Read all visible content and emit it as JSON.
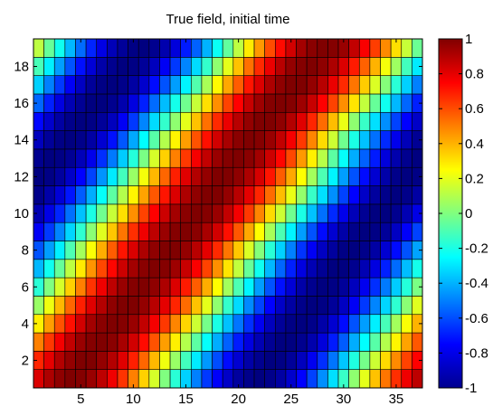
{
  "chart_data": {
    "type": "heatmap",
    "title": "True field, initial time",
    "xlabel": "",
    "ylabel": "",
    "x_count": 37,
    "y_count": 19,
    "x_range": [
      0.5,
      37.5
    ],
    "y_range": [
      0.5,
      19.5
    ],
    "x_ticks": [
      5,
      10,
      15,
      20,
      25,
      30,
      35
    ],
    "y_ticks": [
      2,
      4,
      6,
      8,
      10,
      12,
      14,
      16,
      18
    ],
    "colorbar": {
      "colormap": "jet",
      "range": [
        -1,
        1
      ],
      "ticks": [
        -1,
        -0.8,
        -0.6,
        -0.4,
        -0.2,
        0,
        0.2,
        0.4,
        0.6,
        0.8,
        1
      ],
      "tick_labels": [
        "-1",
        "-0.8",
        "-0.6",
        "-0.4",
        "-0.2",
        "0",
        "0.2",
        "0.4",
        "0.6",
        "0.8",
        "1"
      ]
    },
    "grid_lines": "cell edges (faceted)",
    "values": [
      [
        0.82,
        0.91,
        0.97,
        1.0,
        0.99,
        0.95,
        0.88,
        0.78,
        0.65,
        0.5,
        0.34,
        0.17,
        0.0,
        -0.17,
        -0.34,
        -0.5,
        -0.64,
        -0.76,
        -0.86,
        -0.94,
        -0.98,
        -1.0,
        -0.98,
        -0.93,
        -0.85,
        -0.75,
        -0.62,
        -0.47,
        -0.31,
        -0.14,
        0.03,
        0.2,
        0.37,
        0.52,
        0.66,
        0.78,
        0.88
      ],
      [
        0.68,
        0.8,
        0.9,
        0.96,
        1.0,
        1.0,
        0.96,
        0.9,
        0.81,
        0.69,
        0.55,
        0.39,
        0.22,
        0.05,
        -0.12,
        -0.29,
        -0.45,
        -0.6,
        -0.73,
        -0.84,
        -0.92,
        -0.97,
        -1.0,
        -0.99,
        -0.95,
        -0.88,
        -0.78,
        -0.66,
        -0.52,
        -0.36,
        -0.19,
        -0.02,
        0.15,
        0.32,
        0.48,
        0.62,
        0.75
      ],
      [
        0.5,
        0.64,
        0.77,
        0.87,
        0.95,
        0.99,
        1.0,
        0.98,
        0.92,
        0.84,
        0.73,
        0.59,
        0.44,
        0.28,
        0.1,
        -0.07,
        -0.24,
        -0.41,
        -0.56,
        -0.7,
        -0.81,
        -0.9,
        -0.96,
        -1.0,
        -1.0,
        -0.97,
        -0.91,
        -0.82,
        -0.7,
        -0.57,
        -0.41,
        -0.25,
        -0.08,
        0.1,
        0.27,
        0.43,
        0.58
      ],
      [
        0.28,
        0.44,
        0.59,
        0.72,
        0.84,
        0.93,
        0.98,
        1.0,
        0.99,
        0.95,
        0.87,
        0.77,
        0.64,
        0.49,
        0.33,
        0.15,
        -0.02,
        -0.2,
        -0.37,
        -0.52,
        -0.66,
        -0.78,
        -0.88,
        -0.95,
        -0.99,
        -1.0,
        -0.98,
        -0.92,
        -0.84,
        -0.73,
        -0.59,
        -0.44,
        -0.28,
        -0.11,
        0.07,
        0.24,
        0.4
      ],
      [
        0.05,
        0.22,
        0.39,
        0.55,
        0.69,
        0.81,
        0.9,
        0.97,
        1.0,
        1.0,
        0.96,
        0.89,
        0.8,
        0.68,
        0.54,
        0.37,
        0.2,
        0.03,
        -0.15,
        -0.32,
        -0.48,
        -0.62,
        -0.75,
        -0.86,
        -0.93,
        -0.98,
        -1.0,
        -0.99,
        -0.95,
        -0.87,
        -0.77,
        -0.64,
        -0.49,
        -0.33,
        -0.16,
        0.02,
        0.19
      ],
      [
        -0.17,
        0.0,
        0.17,
        0.34,
        0.5,
        0.65,
        0.78,
        0.88,
        0.95,
        0.99,
        1.0,
        0.97,
        0.91,
        0.82,
        0.7,
        0.57,
        0.41,
        0.25,
        0.07,
        -0.1,
        -0.27,
        -0.44,
        -0.59,
        -0.72,
        -0.83,
        -0.92,
        -0.97,
        -1.0,
        -0.99,
        -0.95,
        -0.88,
        -0.78,
        -0.66,
        -0.51,
        -0.35,
        -0.18,
        -0.01
      ],
      [
        -0.39,
        -0.22,
        -0.05,
        0.12,
        0.29,
        0.46,
        0.61,
        0.74,
        0.85,
        0.93,
        0.98,
        1.0,
        0.99,
        0.94,
        0.86,
        0.76,
        0.62,
        0.47,
        0.3,
        0.13,
        -0.05,
        -0.22,
        -0.39,
        -0.55,
        -0.69,
        -0.81,
        -0.9,
        -0.96,
        -1.0,
        -1.0,
        -0.97,
        -0.9,
        -0.81,
        -0.69,
        -0.54,
        -0.38,
        -0.21
      ],
      [
        -0.59,
        -0.44,
        -0.28,
        -0.1,
        0.07,
        0.24,
        0.41,
        0.57,
        0.71,
        0.82,
        0.91,
        0.97,
        1.0,
        1.0,
        0.96,
        0.89,
        0.8,
        0.67,
        0.52,
        0.36,
        0.18,
        0.01,
        -0.17,
        -0.34,
        -0.5,
        -0.65,
        -0.77,
        -0.87,
        -0.94,
        -0.99,
        -1.0,
        -0.98,
        -0.93,
        -0.84,
        -0.73,
        -0.59,
        -0.43
      ],
      [
        -0.77,
        -0.64,
        -0.49,
        -0.33,
        -0.16,
        0.02,
        0.19,
        0.36,
        0.52,
        0.66,
        0.78,
        0.88,
        0.95,
        0.99,
        1.0,
        0.98,
        0.92,
        0.84,
        0.72,
        0.58,
        0.42,
        0.25,
        0.08,
        -0.1,
        -0.27,
        -0.44,
        -0.59,
        -0.73,
        -0.84,
        -0.92,
        -0.98,
        -1.0,
        -0.99,
        -0.95,
        -0.87,
        -0.76,
        -0.62
      ],
      [
        -0.9,
        -0.8,
        -0.68,
        -0.53,
        -0.37,
        -0.2,
        -0.03,
        0.14,
        0.31,
        0.47,
        0.62,
        0.75,
        0.85,
        0.93,
        0.98,
        1.0,
        0.99,
        0.95,
        0.87,
        0.77,
        0.64,
        0.49,
        0.32,
        0.15,
        -0.03,
        -0.2,
        -0.37,
        -0.53,
        -0.67,
        -0.79,
        -0.89,
        -0.96,
        -1.0,
        -1.0,
        -0.97,
        -0.9,
        -0.8
      ],
      [
        -0.98,
        -0.92,
        -0.83,
        -0.71,
        -0.57,
        -0.41,
        -0.24,
        -0.07,
        0.1,
        0.27,
        0.43,
        0.58,
        0.71,
        0.82,
        0.91,
        0.97,
        1.0,
        1.0,
        0.96,
        0.89,
        0.8,
        0.68,
        0.54,
        0.38,
        0.21,
        0.04,
        -0.14,
        -0.31,
        -0.47,
        -0.62,
        -0.75,
        -0.86,
        -0.94,
        -0.98,
        -1.0,
        -0.98,
        -0.93
      ],
      [
        -1.0,
        -0.99,
        -0.94,
        -0.86,
        -0.75,
        -0.62,
        -0.46,
        -0.29,
        -0.12,
        0.05,
        0.23,
        0.39,
        0.55,
        0.69,
        0.81,
        0.9,
        0.96,
        1.0,
        1.0,
        0.97,
        0.91,
        0.83,
        0.71,
        0.57,
        0.42,
        0.25,
        0.07,
        -0.1,
        -0.27,
        -0.44,
        -0.59,
        -0.73,
        -0.84,
        -0.92,
        -0.98,
        -1.0,
        -0.99
      ],
      [
        -0.97,
        -1.0,
        -0.99,
        -0.96,
        -0.89,
        -0.79,
        -0.66,
        -0.51,
        -0.35,
        -0.18,
        -0.01,
        0.17,
        0.34,
        0.5,
        0.64,
        0.77,
        0.87,
        0.95,
        0.99,
        1.0,
        0.98,
        0.93,
        0.85,
        0.74,
        0.61,
        0.45,
        0.28,
        0.11,
        -0.07,
        -0.24,
        -0.41,
        -0.56,
        -0.7,
        -0.82,
        -0.91,
        -0.97,
        -1.0
      ],
      [
        -0.88,
        -0.95,
        -0.99,
        -1.0,
        -0.98,
        -0.93,
        -0.84,
        -0.72,
        -0.58,
        -0.42,
        -0.25,
        -0.08,
        0.1,
        0.27,
        0.44,
        0.59,
        0.72,
        0.84,
        0.92,
        0.98,
        1.0,
        0.99,
        0.95,
        0.87,
        0.77,
        0.64,
        0.49,
        0.32,
        0.15,
        -0.03,
        -0.2,
        -0.37,
        -0.53,
        -0.67,
        -0.79,
        -0.89,
        -0.96
      ],
      [
        -0.74,
        -0.85,
        -0.93,
        -0.98,
        -1.0,
        -0.99,
        -0.95,
        -0.88,
        -0.77,
        -0.64,
        -0.49,
        -0.32,
        -0.15,
        0.03,
        0.2,
        0.37,
        0.53,
        0.67,
        0.79,
        0.89,
        0.96,
        1.0,
        1.0,
        0.97,
        0.9,
        0.81,
        0.68,
        0.54,
        0.38,
        0.21,
        0.03,
        -0.14,
        -0.31,
        -0.47,
        -0.62,
        -0.75,
        -0.86
      ],
      [
        -0.55,
        -0.69,
        -0.81,
        -0.9,
        -0.96,
        -1.0,
        -1.0,
        -0.97,
        -0.91,
        -0.81,
        -0.69,
        -0.54,
        -0.38,
        -0.21,
        -0.03,
        0.14,
        0.31,
        0.47,
        0.62,
        0.75,
        0.86,
        0.94,
        0.99,
        1.0,
        0.99,
        0.94,
        0.86,
        0.75,
        0.62,
        0.47,
        0.3,
        0.13,
        -0.05,
        -0.22,
        -0.39,
        -0.55,
        -0.69
      ],
      [
        -0.34,
        -0.5,
        -0.64,
        -0.77,
        -0.87,
        -0.95,
        -0.99,
        -1.0,
        -0.98,
        -0.93,
        -0.85,
        -0.73,
        -0.59,
        -0.44,
        -0.27,
        -0.09,
        0.08,
        0.26,
        0.42,
        0.57,
        0.71,
        0.82,
        0.91,
        0.97,
        1.0,
        1.0,
        0.96,
        0.89,
        0.79,
        0.67,
        0.52,
        0.35,
        0.18,
        0.01,
        -0.17,
        -0.34,
        -0.5
      ],
      [
        -0.11,
        -0.28,
        -0.44,
        -0.59,
        -0.72,
        -0.83,
        -0.92,
        -0.97,
        -1.0,
        -0.99,
        -0.95,
        -0.88,
        -0.77,
        -0.64,
        -0.49,
        -0.32,
        -0.15,
        0.03,
        0.2,
        0.37,
        0.53,
        0.67,
        0.79,
        0.89,
        0.96,
        0.99,
        1.0,
        0.97,
        0.91,
        0.82,
        0.7,
        0.56,
        0.4,
        0.23,
        0.06,
        -0.12,
        -0.29
      ],
      [
        0.12,
        -0.05,
        -0.22,
        -0.39,
        -0.54,
        -0.68,
        -0.8,
        -0.89,
        -0.95,
        -0.99,
        -1.0,
        -0.97,
        -0.91,
        -0.82,
        -0.7,
        -0.56,
        -0.4,
        -0.23,
        -0.06,
        0.12,
        0.29,
        0.45,
        0.6,
        0.73,
        0.84,
        0.93,
        0.98,
        1.0,
        0.99,
        0.95,
        0.87,
        0.76,
        0.63,
        0.48,
        0.31,
        0.14,
        -0.04
      ]
    ]
  }
}
